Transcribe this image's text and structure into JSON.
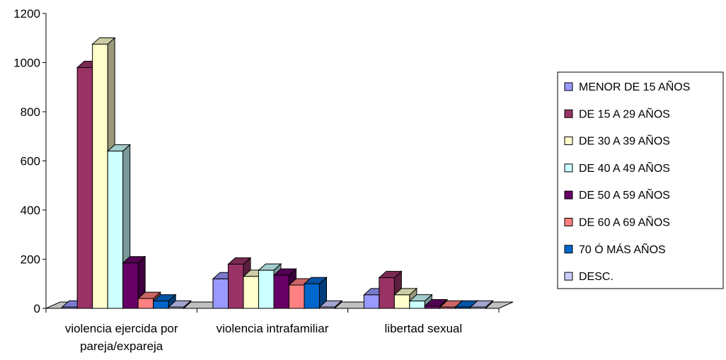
{
  "chart_data": {
    "type": "bar",
    "three_d": true,
    "categories": [
      [
        "violencia ejercida por",
        "pareja/expareja"
      ],
      [
        "violencia intrafamiliar"
      ],
      [
        "libertad sexual"
      ]
    ],
    "series": [
      {
        "name": "MENOR DE 15 AÑOS",
        "color": "#9999ff",
        "values": [
          5,
          120,
          55
        ]
      },
      {
        "name": "DE 15 A 29 AÑOS",
        "color": "#993366",
        "values": [
          980,
          180,
          125
        ]
      },
      {
        "name": "DE 30 A 39 AÑOS",
        "color": "#ffffcc",
        "values": [
          1075,
          130,
          55
        ]
      },
      {
        "name": "DE 40 A 49 AÑOS",
        "color": "#ccffff",
        "values": [
          640,
          155,
          30
        ]
      },
      {
        "name": "DE 50 A 59 AÑOS",
        "color": "#660066",
        "values": [
          185,
          135,
          10
        ]
      },
      {
        "name": "DE 60 A 69 AÑOS",
        "color": "#ff8080",
        "values": [
          40,
          95,
          5
        ]
      },
      {
        "name": "70 Ó MÁS AÑOS",
        "color": "#0066cc",
        "values": [
          30,
          100,
          5
        ]
      },
      {
        "name": "DESC.",
        "color": "#ccccff",
        "values": [
          5,
          5,
          5
        ]
      }
    ],
    "yticks": [
      "0",
      "200",
      "400",
      "600",
      "800",
      "1000",
      "1200"
    ],
    "ylim": [
      0,
      1200
    ],
    "grid": false,
    "legend": "right"
  }
}
